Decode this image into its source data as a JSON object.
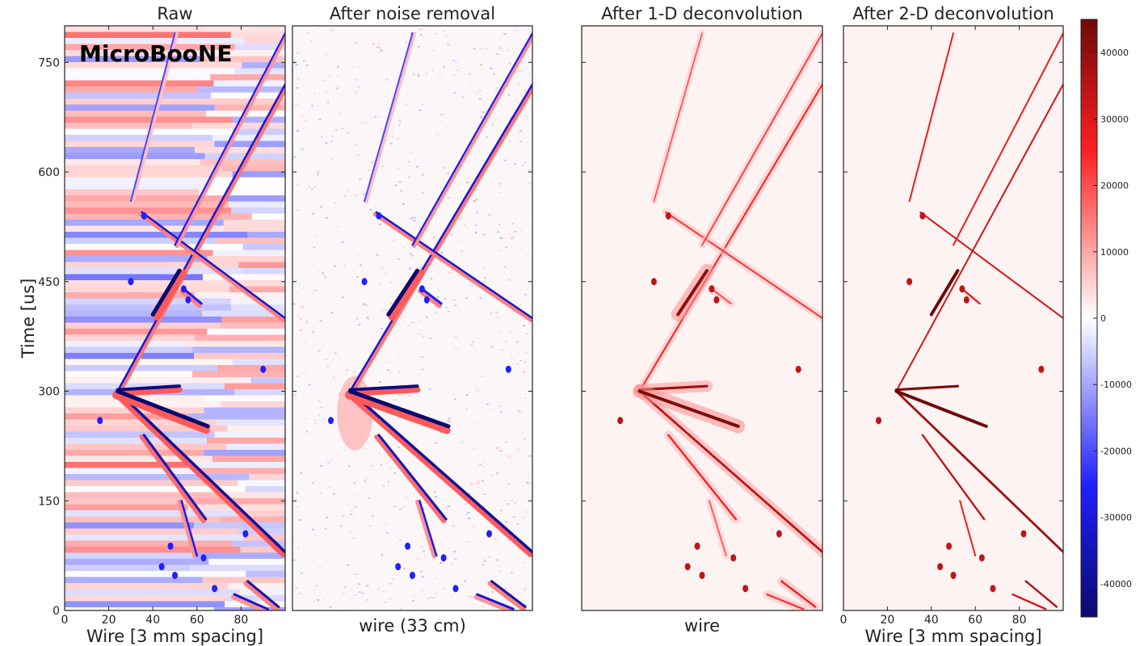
{
  "logo": "MicroBooNE",
  "chart_data": {
    "type": "heatmap",
    "ylabel": "Time [us]",
    "colormap": {
      "name": "seismic",
      "negative": "#0a0a6e",
      "zero": "#ffffff",
      "positive": "#6e0a0a",
      "range": [
        -45000,
        45000
      ],
      "ticks": [
        "40000",
        "30000",
        "20000",
        "10000",
        "0",
        "-10000",
        "-20000",
        "-30000",
        "-40000"
      ],
      "tick_values": [
        40000,
        30000,
        20000,
        10000,
        0,
        -10000,
        -20000,
        -30000,
        -40000
      ]
    },
    "y_ticks": [
      "0",
      "150",
      "300",
      "450",
      "600",
      "750"
    ],
    "y_tick_values": [
      0,
      150,
      300,
      450,
      600,
      750
    ],
    "ylim": [
      0,
      800
    ],
    "xlim": [
      0,
      100
    ],
    "panels": [
      {
        "title": "Raw",
        "xlabel": "Wire [3 mm spacing]",
        "x_ticks": [
          "0",
          "20",
          "40",
          "60",
          "80"
        ],
        "x_tick_values": [
          0,
          20,
          40,
          60,
          80
        ],
        "style": "raw"
      },
      {
        "title": "After noise removal",
        "xlabel": "wire (33 cm)",
        "x_ticks": [],
        "x_tick_values": [],
        "style": "noise"
      },
      {
        "title": "After 1-D deconvolution",
        "xlabel": "wire",
        "x_ticks": [],
        "x_tick_values": [],
        "style": "d1"
      },
      {
        "title": "After 2-D deconvolution",
        "xlabel": "Wire [3 mm spacing]",
        "x_ticks": [
          "0",
          "20",
          "40",
          "60",
          "80"
        ],
        "x_tick_values": [
          0,
          20,
          40,
          60,
          80
        ],
        "style": "d2"
      }
    ],
    "tracks": [
      {
        "name": "vertex-to-top-right",
        "from": [
          24,
          300
        ],
        "to": [
          100,
          720
        ],
        "w": 2.5,
        "bip": 0.75,
        "amp": 0.7,
        "d1": 0.55
      },
      {
        "name": "upper-left-diagonal",
        "from": [
          30,
          560
        ],
        "to": [
          50,
          790
        ],
        "w": 2.0,
        "bip": 0.35,
        "amp": 0.45,
        "d1": 0.45
      },
      {
        "name": "x-crossing",
        "from": [
          35,
          545
        ],
        "to": [
          100,
          400
        ],
        "w": 2.5,
        "bip": 0.7,
        "amp": 0.7,
        "d1": 0.5
      },
      {
        "name": "upper-diagonal-segment",
        "from": [
          50,
          500
        ],
        "to": [
          100,
          790
        ],
        "w": 2.2,
        "bip": 0.6,
        "amp": 0.6,
        "d1": 0.5
      },
      {
        "name": "vertex-to-bottom-right",
        "from": [
          24,
          300
        ],
        "to": [
          100,
          80
        ],
        "w": 3.5,
        "bip": 0.9,
        "amp": 0.85,
        "d1": 0.75
      },
      {
        "name": "short-horizontal",
        "from": [
          24,
          302
        ],
        "to": [
          52,
          307
        ],
        "w": 4.0,
        "bip": 0.9,
        "amp": 0.95,
        "d1": 0.85
      },
      {
        "name": "middle-prong",
        "from": [
          24,
          300
        ],
        "to": [
          65,
          252
        ],
        "w": 5.0,
        "bip": 0.9,
        "amp": 1.0,
        "d1": 0.95
      },
      {
        "name": "thick-upper-segment",
        "from": [
          40,
          405
        ],
        "to": [
          52,
          465
        ],
        "w": 5.0,
        "bip": 0.9,
        "amp": 1.0,
        "d1": 0.9
      },
      {
        "name": "lower-branch",
        "from": [
          36,
          240
        ],
        "to": [
          64,
          125
        ],
        "w": 3.0,
        "bip": 0.8,
        "amp": 0.75,
        "d1": 0.55
      },
      {
        "name": "lower-branch-tail",
        "from": [
          53,
          150
        ],
        "to": [
          60,
          75
        ],
        "w": 2.5,
        "bip": 0.6,
        "amp": 0.6,
        "d1": 0.4
      },
      {
        "name": "bottom-right-short",
        "from": [
          83,
          40
        ],
        "to": [
          97,
          5
        ],
        "w": 3.0,
        "bip": 0.7,
        "amp": 0.8,
        "d1": 0.6
      },
      {
        "name": "bottom-right-low",
        "from": [
          77,
          22
        ],
        "to": [
          92,
          2
        ],
        "w": 3.0,
        "bip": 0.6,
        "amp": 0.7,
        "d1": 0.5
      },
      {
        "name": "blob-upper",
        "from": [
          54,
          440
        ],
        "to": [
          62,
          420
        ],
        "w": 3.0,
        "bip": 0.7,
        "amp": 0.6,
        "d1": 0.4
      }
    ],
    "blobs": [
      [
        54,
        440
      ],
      [
        56,
        425
      ],
      [
        44,
        60
      ],
      [
        50,
        48
      ],
      [
        48,
        88
      ],
      [
        68,
        30
      ],
      [
        63,
        72
      ],
      [
        82,
        105
      ],
      [
        36,
        540
      ],
      [
        30,
        450
      ],
      [
        16,
        260
      ],
      [
        90,
        330
      ]
    ]
  }
}
